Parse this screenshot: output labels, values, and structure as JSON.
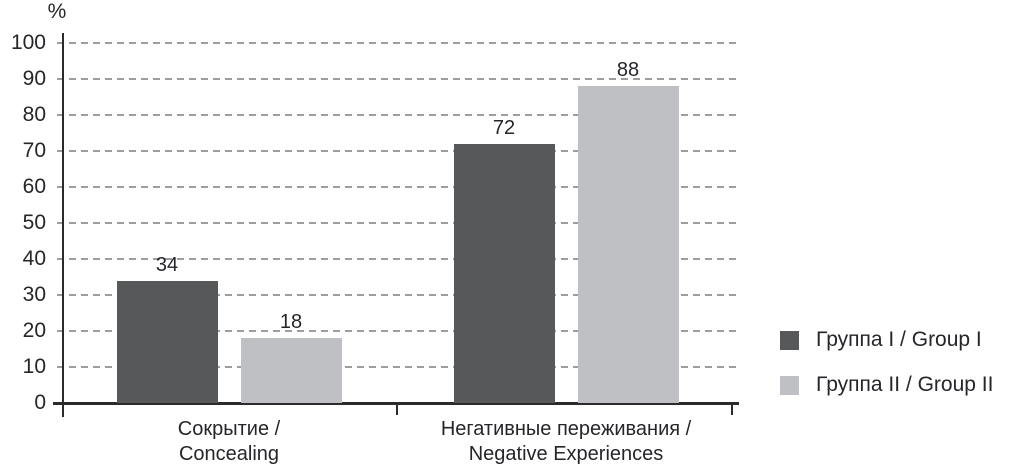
{
  "chart_data": {
    "type": "bar",
    "title": "",
    "xlabel": "",
    "ylabel": "%",
    "ylim": [
      0,
      100
    ],
    "ytick_step": 10,
    "yticks": [
      0,
      10,
      20,
      30,
      40,
      50,
      60,
      70,
      80,
      90,
      100
    ],
    "grid": "horizontal-dashed",
    "legend_position": "right",
    "categories": [
      "Сокрытие / Concealing",
      "Негативные переживания / Negative Experiences"
    ],
    "category_label_lines": [
      [
        "Сокрытие /",
        "Concealing"
      ],
      [
        "Негативные переживания /",
        "Negative Experiences"
      ]
    ],
    "series": [
      {
        "name": "Группа I / Group I",
        "color": "#57585a",
        "values": [
          34,
          72
        ]
      },
      {
        "name": "Группа II / Group II",
        "color": "#bfc0c3",
        "values": [
          18,
          88
        ]
      }
    ]
  },
  "style_colors": {
    "axis": "#2b2b2b",
    "gridline": "#9d9d9d",
    "text": "#26262a",
    "background": "#ffffff"
  }
}
